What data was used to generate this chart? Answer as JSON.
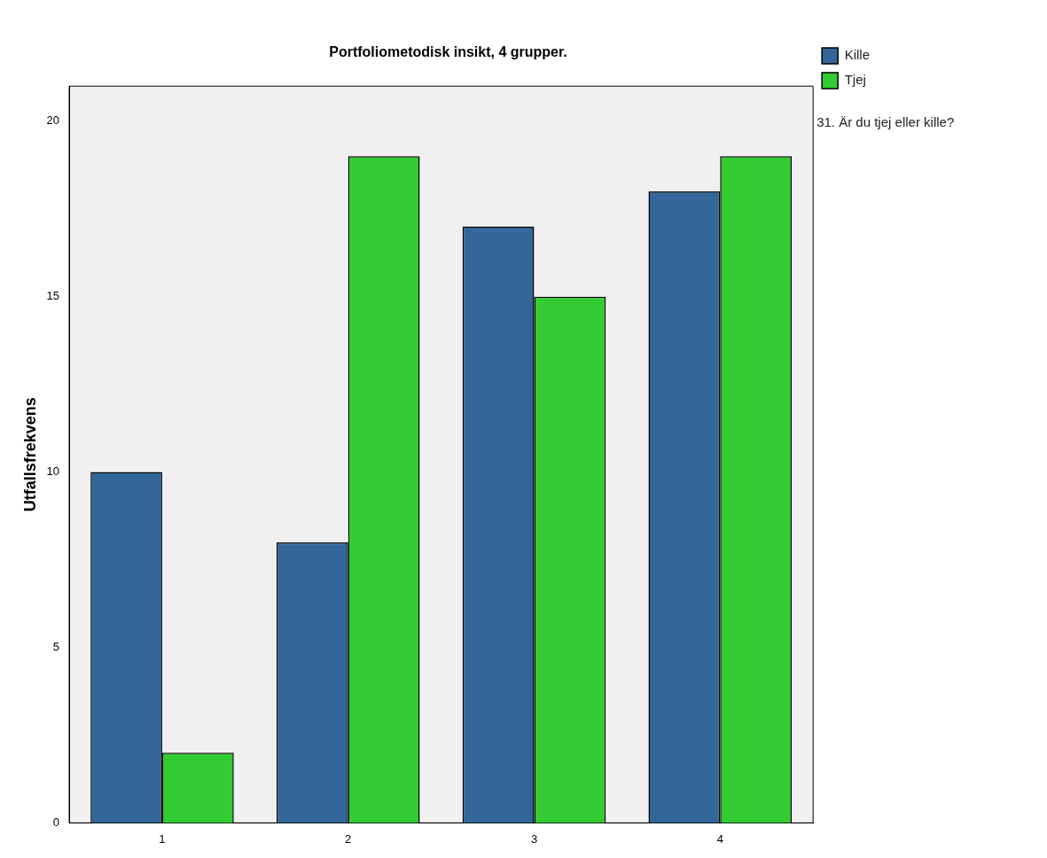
{
  "chart_data": {
    "type": "bar",
    "title": "Portfoliometodisk insikt, 4 grupper.",
    "ylabel": "Utfallsfrekvens",
    "legend_title": "31. Är du tjej eller kille?",
    "categories": [
      "1",
      "2",
      "3",
      "4"
    ],
    "series": [
      {
        "name": "Kille",
        "color": "#336699",
        "values": [
          10,
          8,
          17,
          18
        ]
      },
      {
        "name": "Tjej",
        "color": "#33cc33",
        "values": [
          2,
          19,
          15,
          19
        ]
      }
    ],
    "ylim": [
      0,
      21
    ],
    "yticks": [
      0,
      5,
      10,
      15,
      20
    ],
    "grid": false,
    "legend": "top right"
  }
}
